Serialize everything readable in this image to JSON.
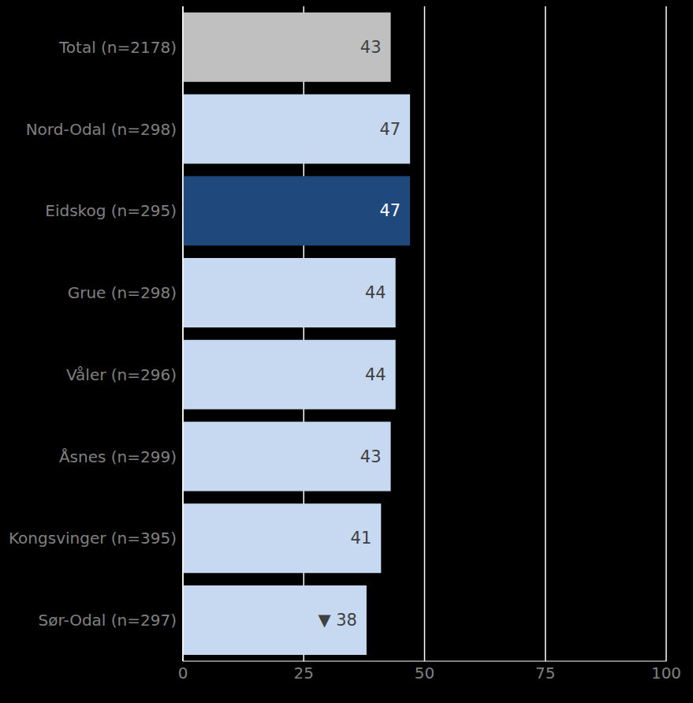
{
  "chart_data": {
    "type": "bar",
    "orientation": "horizontal",
    "categories": [
      "Total (n=2178)",
      "Nord-Odal (n=298)",
      "Eidskog (n=295)",
      "Grue (n=298)",
      "Våler (n=296)",
      "Åsnes (n=299)",
      "Kongsvinger (n=395)",
      "Sør-Odal (n=297)"
    ],
    "values": [
      43,
      47,
      47,
      44,
      44,
      43,
      41,
      38
    ],
    "value_labels": [
      "43",
      "47",
      "47",
      "44",
      "44",
      "43",
      "41",
      "▼ 38"
    ],
    "colors": [
      "#c0c0c0",
      "#c6d9f1",
      "#1f497d",
      "#c6d9f1",
      "#c6d9f1",
      "#c6d9f1",
      "#c6d9f1",
      "#c6d9f1"
    ],
    "xlim": [
      0,
      100
    ],
    "xticks": [
      0,
      25,
      50,
      75,
      100
    ],
    "grid": true,
    "data_labels": true
  }
}
